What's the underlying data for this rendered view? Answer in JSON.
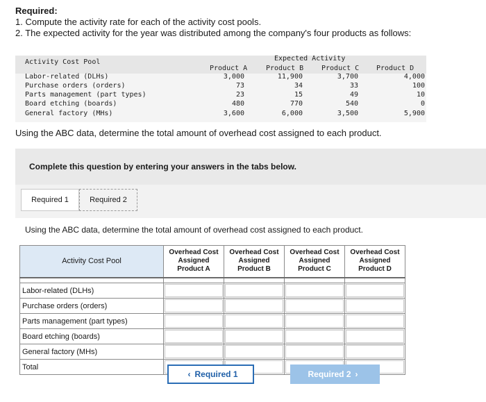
{
  "required": {
    "title": "Required:",
    "line1": "1. Compute the activity rate for each of the activity cost pools.",
    "line2": "2. The expected activity for the year was distributed among the company's four products as follows:"
  },
  "activity_table": {
    "pool_header": "Activity Cost Pool",
    "group_header": "Expected Activity",
    "products": [
      "Product A",
      "Product B",
      "Product C",
      "Product D"
    ],
    "rows": [
      {
        "label": "Labor-related (DLHs)",
        "values": [
          "3,000",
          "11,900",
          "3,700",
          "4,000"
        ]
      },
      {
        "label": "Purchase orders (orders)",
        "values": [
          "73",
          "34",
          "33",
          "100"
        ]
      },
      {
        "label": "Parts management (part types)",
        "values": [
          "23",
          "15",
          "49",
          "10"
        ]
      },
      {
        "label": "Board etching (boards)",
        "values": [
          "480",
          "770",
          "540",
          "0"
        ]
      },
      {
        "label": "General factory (MHs)",
        "values": [
          "3,600",
          "6,000",
          "3,500",
          "5,900"
        ]
      }
    ]
  },
  "question": "Using the ABC data, determine the total amount of overhead cost assigned to each product.",
  "instruction": "Complete this question by entering your answers in the tabs below.",
  "tabs": [
    "Required 1",
    "Required 2"
  ],
  "answer_prompt": "Using the ABC data, determine the total amount of overhead cost assigned to each product.",
  "answer_table": {
    "pool_header": "Activity Cost Pool",
    "col_headers": [
      [
        "Overhead Cost",
        "Assigned",
        "Product A"
      ],
      [
        "Overhead Cost",
        "Assigned",
        "Product B"
      ],
      [
        "Overhead Cost",
        "Assigned",
        "Product C"
      ],
      [
        "Overhead Cost",
        "Assigned",
        "Product D"
      ]
    ],
    "rows": [
      "Labor-related (DLHs)",
      "Purchase orders (orders)",
      "Parts management (part types)",
      "Board etching (boards)",
      "General factory (MHs)",
      "Total"
    ]
  },
  "nav": {
    "prev_label": "Required 1",
    "next_label": "Required 2",
    "prev_icon": "chevron-left-icon",
    "next_icon": "chevron-right-icon"
  }
}
